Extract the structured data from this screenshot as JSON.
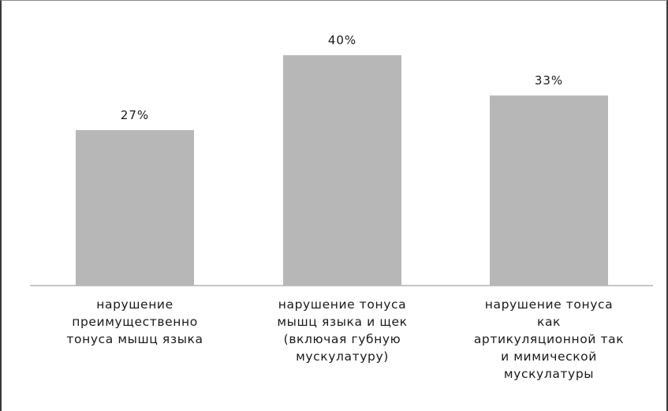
{
  "chart_data": {
    "type": "bar",
    "categories": [
      "нарушение\nпреимущественно\nтонуса мышц языка",
      "нарушение тонуса\nмышц языка и щек\n(включая губную\nмускулатуру)",
      "нарушение тонуса\nкак\nартикуляционной так\nи мимической\nмускулатуры"
    ],
    "values": [
      27,
      40,
      33
    ],
    "data_labels": [
      "27%",
      "40%",
      "33%"
    ],
    "unit": "%",
    "ylim": [
      0,
      45
    ],
    "bar_color": "#b7b7b7",
    "grid": false,
    "legend": "none"
  }
}
